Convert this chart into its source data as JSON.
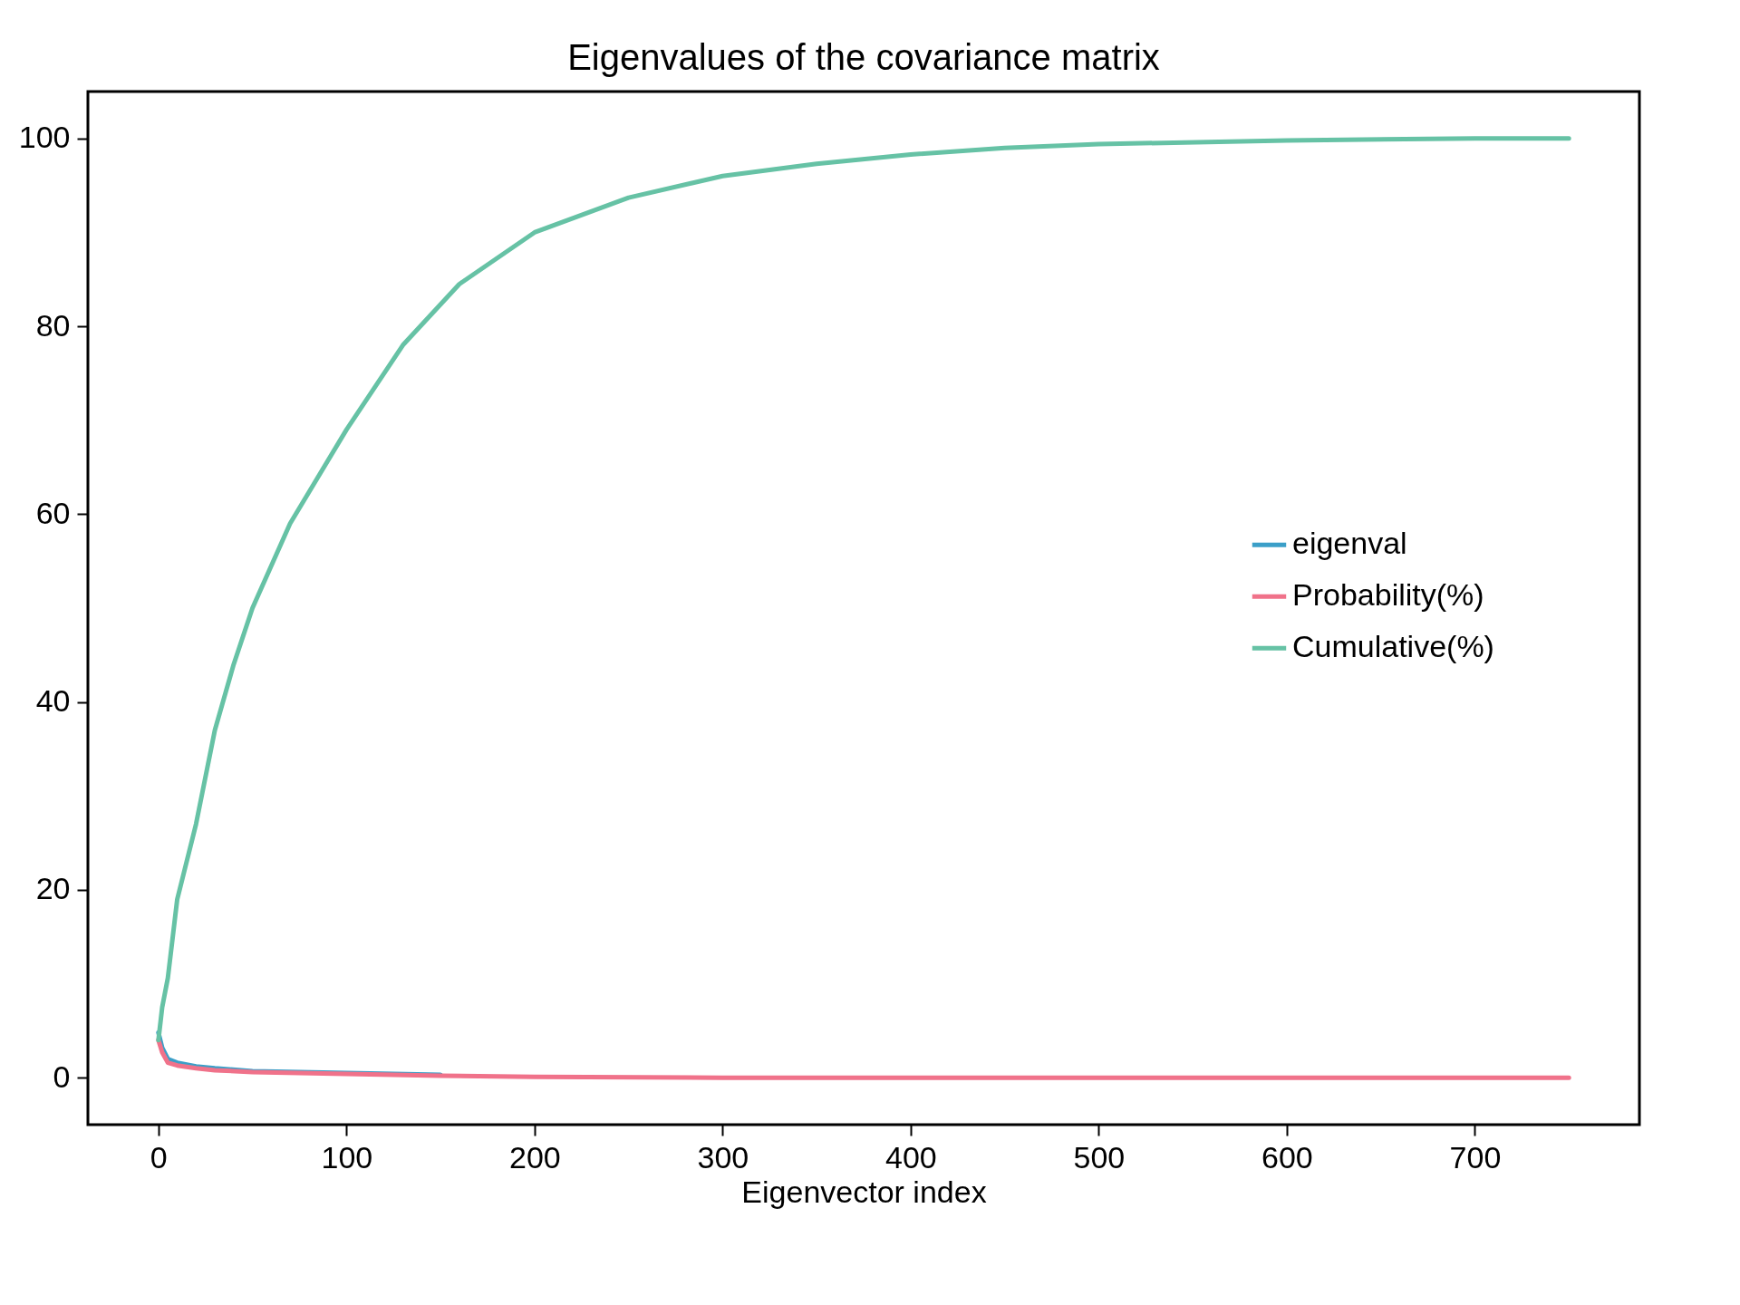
{
  "chart_data": {
    "type": "line",
    "title": "Eigenvalues of the covariance matrix",
    "xlabel": "Eigenvector index",
    "xlim": [
      -37.5,
      787.5
    ],
    "ylim": [
      -5,
      105
    ],
    "xticks": [
      0,
      100,
      200,
      300,
      400,
      500,
      600,
      700
    ],
    "yticks": [
      0,
      20,
      40,
      60,
      80,
      100
    ],
    "grid": false,
    "legend": "right",
    "line_style": "solid",
    "series": [
      {
        "name": "eigenval",
        "color": "#3b9fc8",
        "x": [
          0,
          2,
          5,
          10,
          20,
          30,
          50,
          100,
          150
        ],
        "values": [
          4.8,
          3.2,
          2.0,
          1.6,
          1.2,
          1.0,
          0.7,
          0.5,
          0.3
        ]
      },
      {
        "name": "Probability(%)",
        "color": "#f0728a",
        "x": [
          0,
          2,
          5,
          10,
          20,
          30,
          50,
          100,
          150,
          200,
          300,
          400,
          500,
          600,
          750
        ],
        "values": [
          4.0,
          2.7,
          1.6,
          1.3,
          1.0,
          0.8,
          0.6,
          0.4,
          0.2,
          0.1,
          0.0,
          0.0,
          0.0,
          0.0,
          0.0
        ]
      },
      {
        "name": "Cumulative(%)",
        "color": "#66c2a5",
        "x": [
          0,
          2,
          5,
          10,
          20,
          30,
          40,
          50,
          70,
          100,
          130,
          160,
          200,
          250,
          300,
          350,
          400,
          450,
          500,
          600,
          700,
          750
        ],
        "values": [
          4.0,
          7.5,
          10.6,
          19,
          27,
          37,
          44,
          50,
          59,
          69,
          78,
          84.5,
          90,
          93.7,
          96,
          97.3,
          98.3,
          99.0,
          99.4,
          99.8,
          100,
          100
        ]
      }
    ]
  }
}
